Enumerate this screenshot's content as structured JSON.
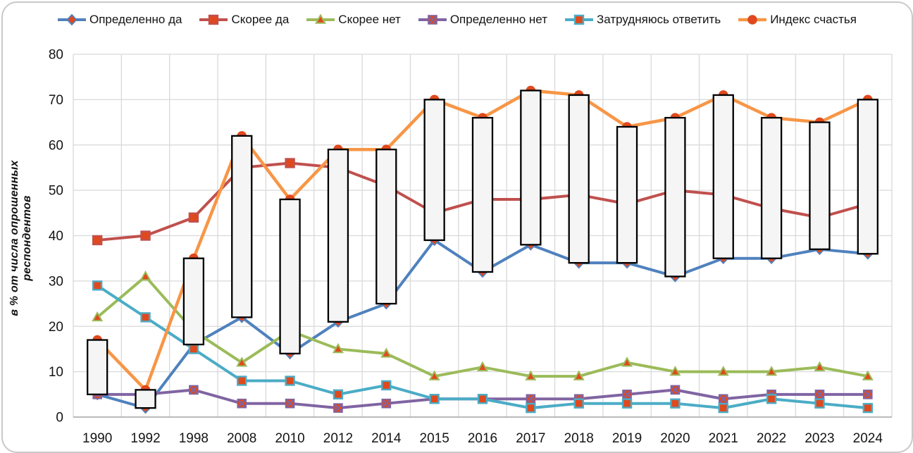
{
  "chart_data": {
    "type": "line",
    "categories": [
      "1990",
      "1992",
      "1998",
      "2008",
      "2010",
      "2012",
      "2014",
      "2015",
      "2016",
      "2017",
      "2018",
      "2019",
      "2020",
      "2021",
      "2022",
      "2023",
      "2024"
    ],
    "series": [
      {
        "key": "definitely-yes",
        "label": "Определенно да",
        "color": "#4F81BD",
        "marker": "diamond",
        "values": [
          5,
          2,
          16,
          22,
          14,
          21,
          25,
          39,
          32,
          38,
          34,
          34,
          31,
          35,
          35,
          37,
          36
        ]
      },
      {
        "key": "rather-yes",
        "label": "Скорее да",
        "color": "#C0504D",
        "marker": "square",
        "values": [
          39,
          40,
          44,
          55,
          56,
          55,
          51,
          45,
          48,
          48,
          49,
          47,
          50,
          49,
          46,
          44,
          47
        ]
      },
      {
        "key": "rather-no",
        "label": "Скорее нет",
        "color": "#9BBB59",
        "marker": "triangle",
        "values": [
          22,
          31,
          19,
          12,
          19,
          15,
          14,
          9,
          11,
          9,
          9,
          12,
          10,
          10,
          10,
          11,
          9
        ]
      },
      {
        "key": "definitely-no",
        "label": "Определенно нет",
        "color": "#8064A2",
        "marker": "xsquare",
        "values": [
          5,
          5,
          6,
          3,
          3,
          2,
          3,
          4,
          4,
          4,
          4,
          5,
          6,
          4,
          5,
          5,
          5
        ]
      },
      {
        "key": "hard-to-answer",
        "label": "Затрудняюсь ответить",
        "color": "#4BACC6",
        "marker": "square",
        "values": [
          29,
          22,
          15,
          8,
          8,
          5,
          7,
          4,
          4,
          2,
          3,
          3,
          3,
          2,
          4,
          3,
          2
        ]
      },
      {
        "key": "happiness-index",
        "label": "Индекс счастья",
        "color": "#F79646",
        "marker": "circle",
        "values": [
          17,
          6,
          35,
          62,
          48,
          59,
          59,
          70,
          66,
          72,
          71,
          64,
          66,
          71,
          66,
          65,
          70
        ]
      }
    ],
    "range_bars": {
      "low_series": "definitely-yes",
      "high_series": "happiness-index",
      "fill": "#F5F5F5",
      "border": "#000000"
    },
    "marker_fill": "#E0491D",
    "ylabel": "в % от числа опрошенных респондентов",
    "ylim": [
      0,
      80
    ],
    "ystep": 10,
    "y_tick_labels": [
      "0",
      "10",
      "20",
      "30",
      "40",
      "50",
      "60",
      "70",
      "80"
    ],
    "grid": true,
    "legend_position": "top",
    "colors": {
      "gridline": "#D9D9D9",
      "axis": "#A6A6A6",
      "tick_text": "#141414"
    }
  }
}
